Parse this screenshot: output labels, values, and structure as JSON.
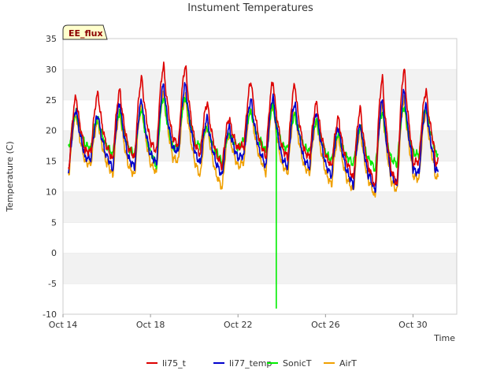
{
  "chart_data": {
    "type": "line",
    "title": "Instument Temperatures",
    "xlabel": "Time",
    "ylabel": "Temperature (C)",
    "badge": "EE_flux",
    "ylim": [
      -10,
      35
    ],
    "y_ticks": [
      -10,
      -5,
      0,
      5,
      10,
      15,
      20,
      25,
      30,
      35
    ],
    "xlim": [
      "Oct 14",
      "Nov 1"
    ],
    "x_ticks": [
      {
        "label": "Oct 14",
        "day": 0
      },
      {
        "label": "Oct 18",
        "day": 4
      },
      {
        "label": "Oct 22",
        "day": 8
      },
      {
        "label": "Oct 26",
        "day": 12
      },
      {
        "label": "Oct 30",
        "day": 16
      }
    ],
    "grid": "horizontal bands",
    "legend_position": "bottom",
    "series": [
      {
        "name": "li75_t",
        "color": "#dd0000",
        "daily_max": [
          25.5,
          26,
          26.5,
          28.5,
          30.5,
          30.5,
          24.5,
          22,
          28,
          28,
          27.5,
          24.5,
          22,
          23.5,
          28.5,
          30,
          26.5
        ],
        "daily_min": [
          14,
          16.5,
          15,
          15.5,
          16.5,
          17.5,
          16,
          14,
          17.5,
          15.5,
          15.5,
          15.5,
          14,
          12,
          10.5,
          11,
          15
        ]
      },
      {
        "name": "li77_temp",
        "color": "#0000cc",
        "daily_max": [
          23.5,
          22.5,
          24.5,
          25,
          27.5,
          27.5,
          22,
          20.5,
          25,
          25.5,
          24.5,
          23,
          20.5,
          21,
          25,
          26.5,
          24
        ],
        "daily_min": [
          13.5,
          15.5,
          13.5,
          14,
          14.5,
          16.5,
          14.5,
          12.5,
          16,
          14,
          14,
          14,
          12.5,
          11,
          10,
          11,
          13
        ]
      },
      {
        "name": "SonicT",
        "color": "#00ee00",
        "daily_max": [
          23,
          22,
          23,
          23.5,
          25.5,
          25.5,
          20.5,
          19.5,
          23,
          24,
          22.5,
          21.5,
          19.5,
          20.5,
          23,
          24,
          23.5
        ],
        "daily_min": [
          17,
          17,
          16,
          16,
          14,
          17.5,
          17.5,
          14.5,
          18.5,
          16.5,
          17,
          16.5,
          15,
          14.5,
          13.5,
          14.5,
          16
        ],
        "spike": {
          "day": 9.75,
          "value": -9
        }
      },
      {
        "name": "AirT",
        "color": "#f0a000",
        "daily_max": [
          22.5,
          21.5,
          23,
          24,
          26,
          25.5,
          21,
          19.5,
          23.5,
          24,
          23,
          21.5,
          19,
          20,
          24,
          25,
          23
        ],
        "daily_min": [
          13,
          14.5,
          12.5,
          12.5,
          13,
          15,
          12.5,
          10.5,
          15,
          13,
          13,
          13,
          11,
          10,
          9,
          10,
          12
        ]
      }
    ]
  }
}
